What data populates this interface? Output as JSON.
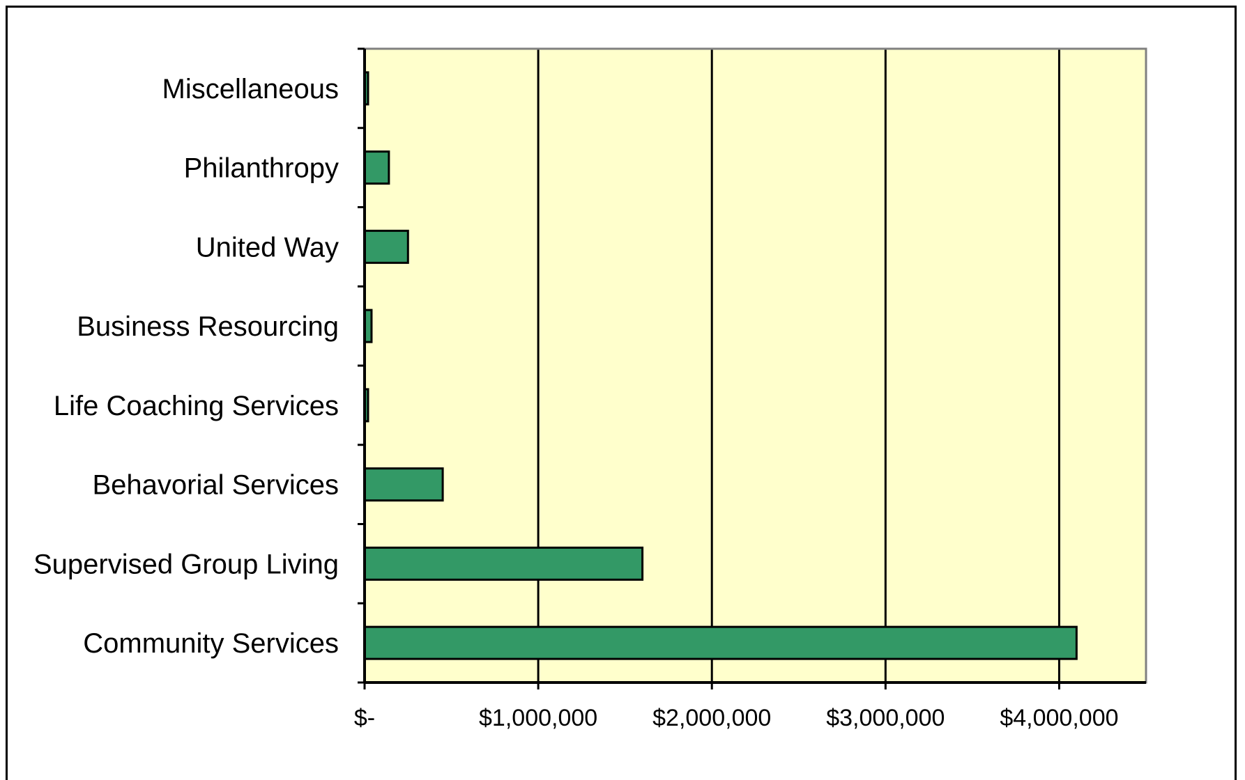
{
  "chart_data": {
    "type": "bar",
    "orientation": "horizontal",
    "title": "",
    "xlabel": "",
    "ylabel": "",
    "categories": [
      "Community Services",
      "Supervised Group Living",
      "Behavorial Services",
      "Life Coaching Services",
      "Business Resourcing",
      "United Way",
      "Philanthropy",
      "Miscellaneous"
    ],
    "values": [
      4100000,
      1600000,
      450000,
      20000,
      40000,
      250000,
      140000,
      20000
    ],
    "xlim": [
      0,
      4500000
    ],
    "xticks": [
      0,
      1000000,
      2000000,
      3000000,
      4000000
    ],
    "xtick_labels": [
      "$-",
      "$1,000,000",
      "$2,000,000",
      "$3,000,000",
      "$4,000,000"
    ],
    "grid": "vertical major gridlines",
    "legend": "none",
    "colors": {
      "bar_fill": "#339966",
      "bar_stroke": "#000000",
      "plot_background": "#FFFFCC",
      "gridline": "#000000",
      "plot_border": "#808080"
    }
  }
}
